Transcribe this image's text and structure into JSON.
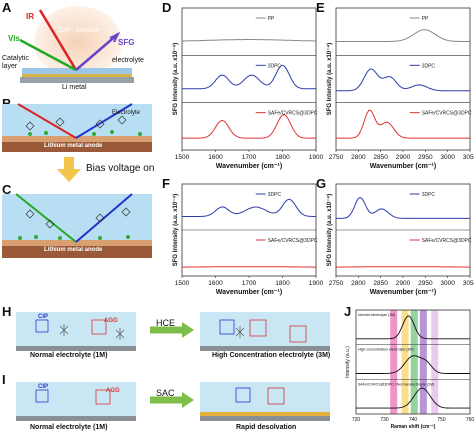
{
  "panels": {
    "A": "A",
    "B": "B",
    "C": "C",
    "D": "D",
    "E": "E",
    "F": "F",
    "G": "G",
    "H": "H",
    "I": "I",
    "J": "J"
  },
  "A": {
    "ir": "IR",
    "vis": "Vis",
    "window": "CaF₂ window",
    "sfg": "SFG",
    "catalytic": "Catalytic",
    "layer": "layer",
    "electrolyte": "electrolyte",
    "li_metal": "Li metal"
  },
  "B": {
    "electrolyte": "Electrolyte",
    "anode": "Lithium metal anode"
  },
  "bias": "Bias voltage on",
  "C": {
    "anode": "Lithium metal anode"
  },
  "D": {
    "series": [
      "PP",
      "3DPC",
      "SAFe/CVRCS@3DPC"
    ],
    "xlabel": "Wavenumber (cm⁻¹)",
    "ylabel": "SFG Intensity (a.u. x10⁻⁴)",
    "xticks": [
      "1500",
      "1600",
      "1700",
      "1800",
      "1900"
    ]
  },
  "E": {
    "series": [
      "PP",
      "3DPC",
      "SAFe/CVRCS@3DPC"
    ],
    "xlabel": "Wavenumber (cm⁻¹)",
    "ylabel": "SFG Intensity (a.u. x10⁻⁴)",
    "xticks": [
      "2750",
      "2800",
      "2850",
      "2900",
      "2950",
      "3000",
      "3050"
    ]
  },
  "F": {
    "series": [
      "3DPC",
      "SAFe/CVRCS@3DPC"
    ],
    "xlabel": "Wavenumber (cm⁻¹)",
    "ylabel": "SFG Intensity (a.u. x10⁻⁴)",
    "xticks": [
      "1500",
      "1600",
      "1700",
      "1800",
      "1900"
    ]
  },
  "G": {
    "series": [
      "3DPC",
      "SAFe/CVRCS@3DPC"
    ],
    "xlabel": "Wavenumber (cm⁻¹)",
    "ylabel": "SFG Intensity (a.u. x10⁻⁴)",
    "xticks": [
      "2750",
      "2800",
      "2850",
      "2900",
      "2950",
      "3000",
      "3050"
    ]
  },
  "H": {
    "cip": "CIP",
    "agg": "AGG",
    "method": "HCE",
    "left_caption": "Normal electrolyte (1M)",
    "right_caption": "High Concentration electrolyte (3M)"
  },
  "I": {
    "cip": "CIP",
    "agg": "AGG",
    "method": "SAC",
    "left_caption": "Normal electrolyte (1M)",
    "right_caption": "Rapid desolvation"
  },
  "J": {
    "labels": [
      "Normal electrolyte (1M)",
      "High concentration electrolyte (3M)",
      "SAFe/CVRCS@3DPC / Normal electrolyte (1M)"
    ],
    "xlabel": "Raman shift (cm⁻¹)",
    "ylabel": "Intensity (a.u.)",
    "xticks": [
      "720",
      "730",
      "740",
      "750",
      "760"
    ]
  }
}
